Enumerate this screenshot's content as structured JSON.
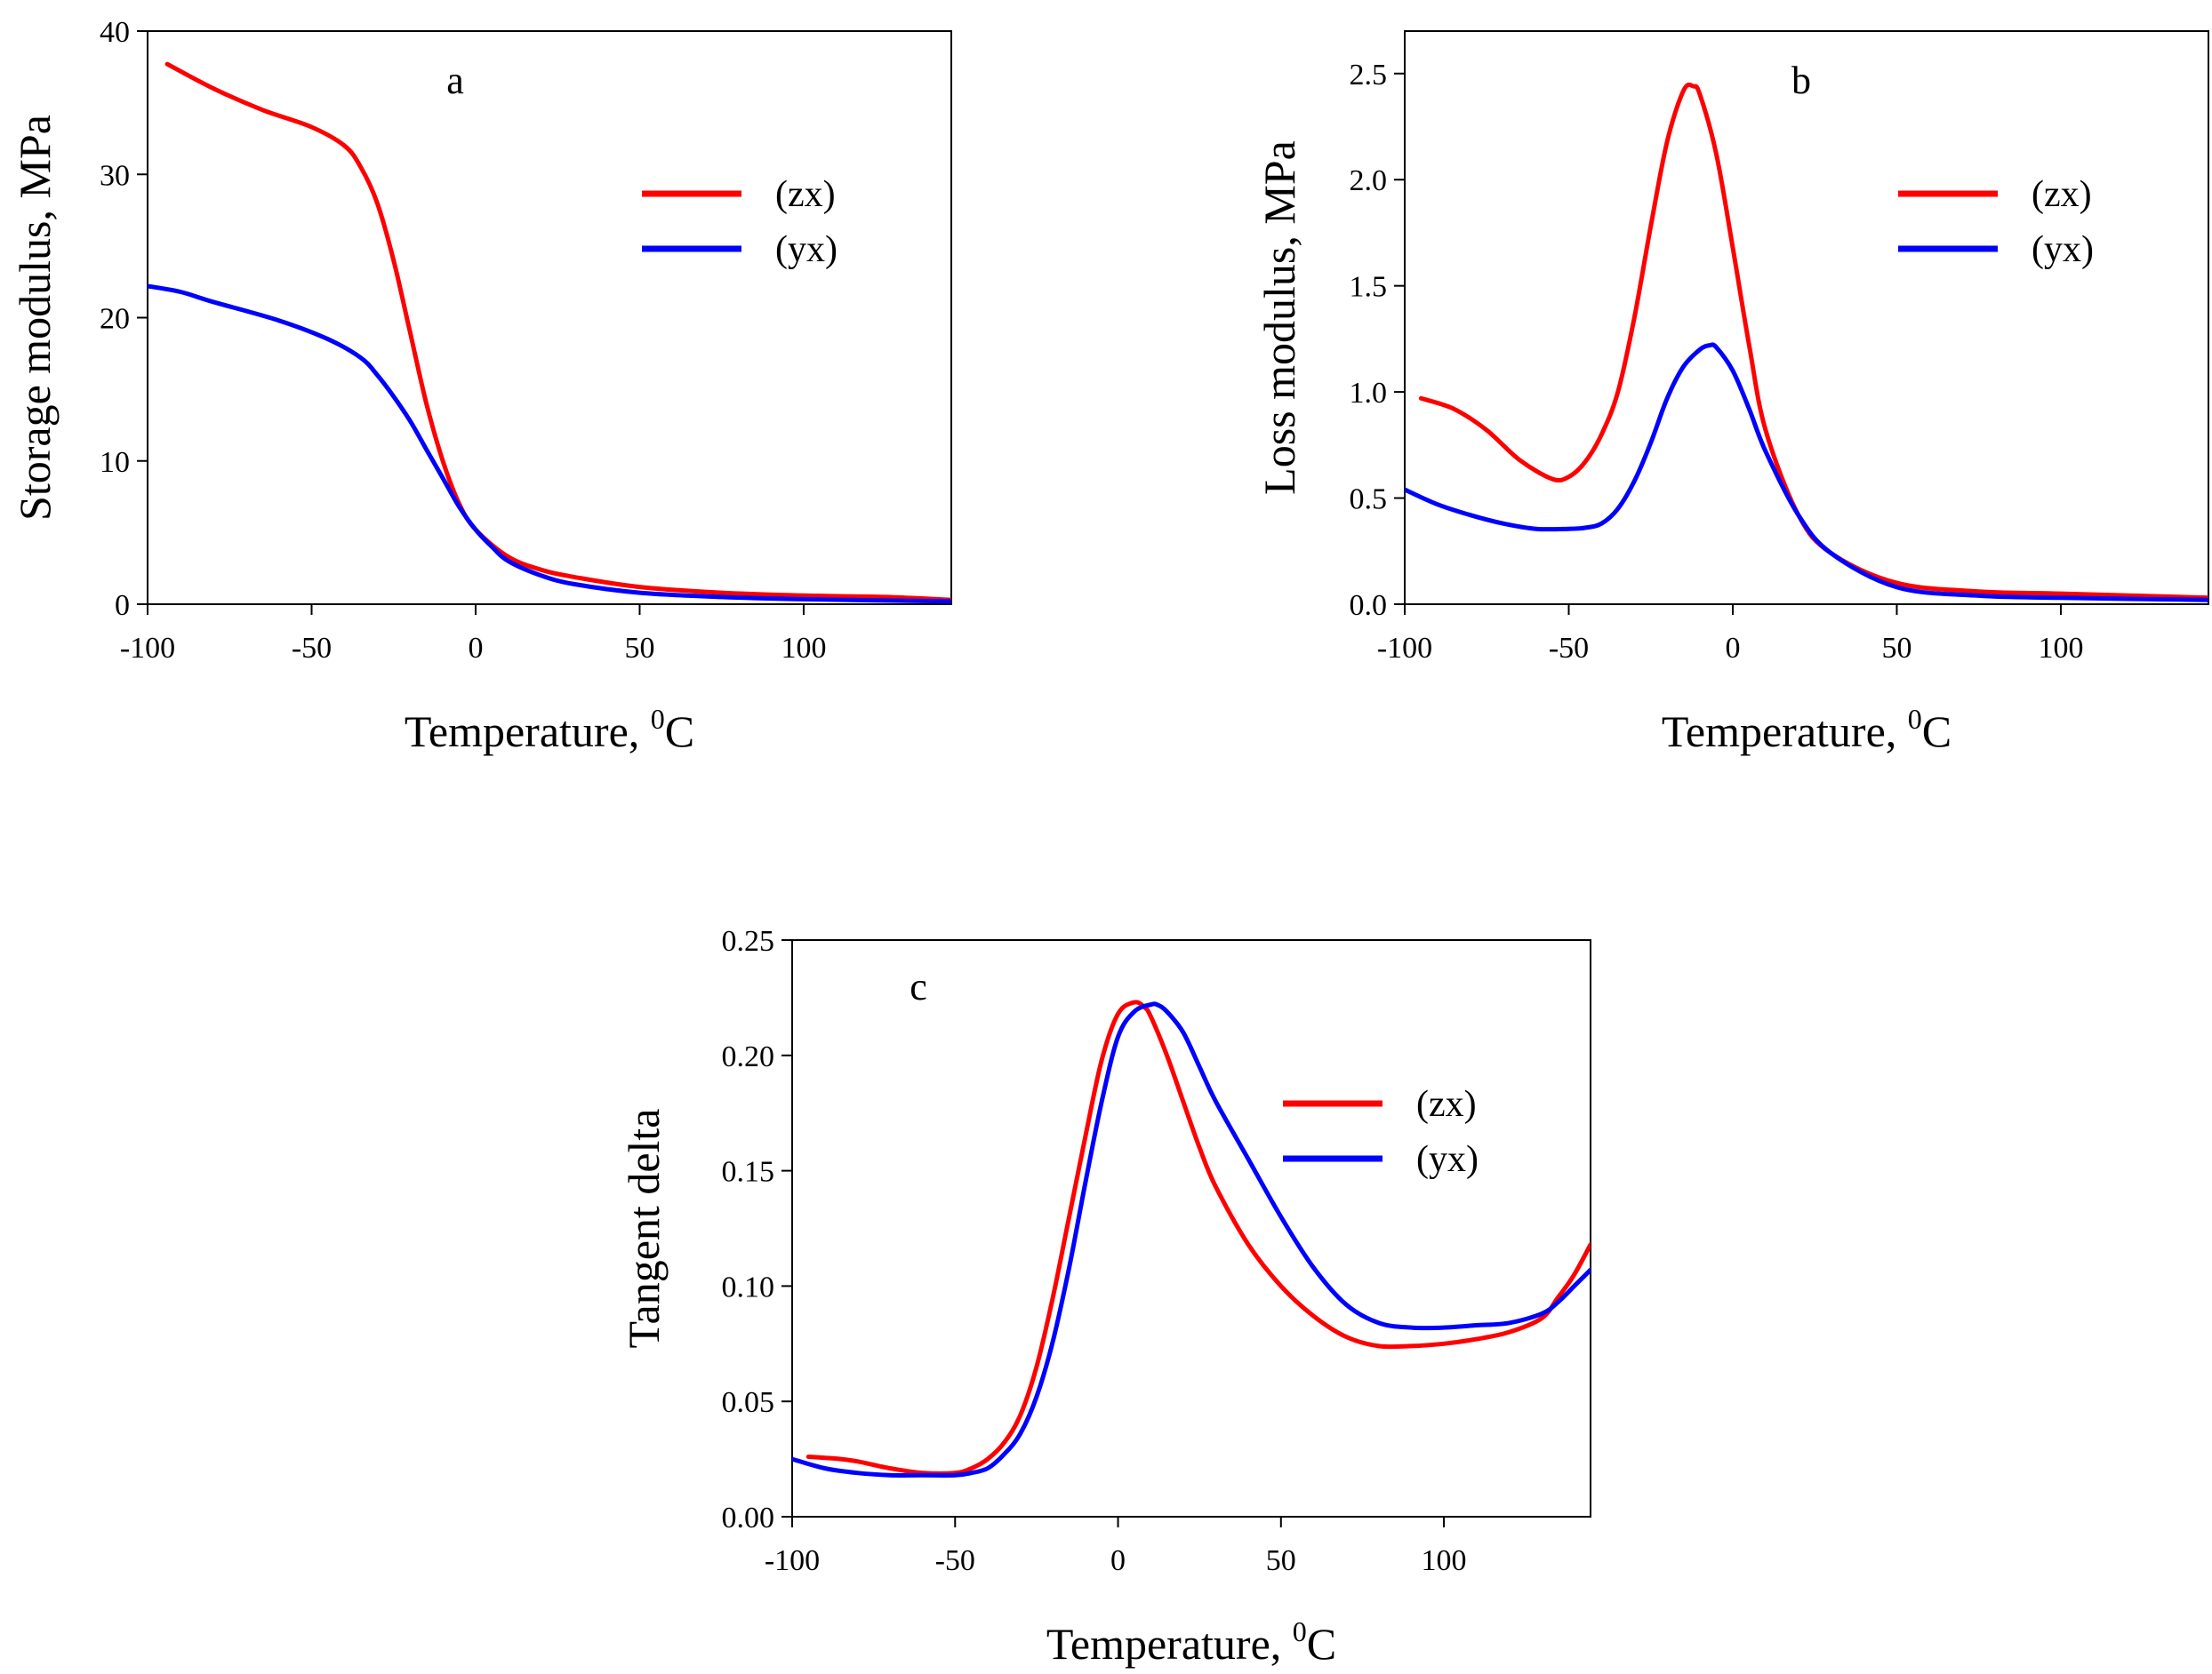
{
  "chart_data": [
    {
      "id": "a",
      "type": "line",
      "panel_label": "a",
      "xlabel": "Temperature, ",
      "xlabel_sup": "0",
      "xlabel_unit": "C",
      "ylabel": "Storage modulus, MPa",
      "xlim": [
        -100,
        145
      ],
      "ylim": [
        0,
        40
      ],
      "xticks": [
        -100,
        -50,
        0,
        50,
        100
      ],
      "yticks": [
        0,
        10,
        20,
        30,
        40
      ],
      "ytick_labels": [
        "0",
        "10",
        "20",
        "30",
        "40"
      ],
      "legend": [
        "(zx)",
        "(yx)"
      ],
      "series": [
        {
          "name": "(zx)",
          "color": "#ff0000",
          "x": [
            -94,
            -80,
            -65,
            -50,
            -40,
            -35,
            -30,
            -25,
            -20,
            -15,
            -10,
            -5,
            0,
            10,
            20,
            30,
            50,
            75,
            100,
            125,
            145
          ],
          "y": [
            37.7,
            36.0,
            34.5,
            33.3,
            32.0,
            30.5,
            28.0,
            24.0,
            19.0,
            14.0,
            10.0,
            7.0,
            5.2,
            3.3,
            2.4,
            1.9,
            1.2,
            0.8,
            0.6,
            0.5,
            0.3
          ]
        },
        {
          "name": "(yx)",
          "color": "#0000ff",
          "x": [
            -100,
            -90,
            -80,
            -60,
            -45,
            -35,
            -30,
            -25,
            -20,
            -15,
            -10,
            -5,
            0,
            5,
            10,
            20,
            30,
            50,
            75,
            100,
            145
          ],
          "y": [
            22.2,
            21.8,
            21.1,
            19.8,
            18.5,
            17.2,
            16.0,
            14.5,
            12.8,
            10.8,
            8.8,
            6.8,
            5.2,
            4.0,
            3.0,
            2.0,
            1.4,
            0.8,
            0.5,
            0.35,
            0.2
          ]
        }
      ]
    },
    {
      "id": "b",
      "type": "line",
      "panel_label": "b",
      "xlabel": "Temperature, ",
      "xlabel_sup": "0",
      "xlabel_unit": "C",
      "ylabel": "Loss modulus, MPa",
      "xlim": [
        -100,
        145
      ],
      "ylim": [
        0,
        2.7
      ],
      "xticks": [
        -100,
        -50,
        0,
        50,
        100
      ],
      "yticks": [
        0,
        0.5,
        1.0,
        1.5,
        2.0,
        2.5
      ],
      "ytick_labels": [
        "0.0",
        "0.5",
        "1.0",
        "1.5",
        "2.0",
        "2.5"
      ],
      "legend": [
        "(zx)",
        "(yx)"
      ],
      "series": [
        {
          "name": "(zx)",
          "color": "#ff0000",
          "x": [
            -95,
            -85,
            -75,
            -65,
            -55,
            -50,
            -45,
            -40,
            -35,
            -30,
            -25,
            -20,
            -15,
            -12,
            -10,
            -5,
            0,
            5,
            10,
            20,
            30,
            50,
            75,
            100,
            145
          ],
          "y": [
            0.97,
            0.92,
            0.82,
            0.68,
            0.59,
            0.6,
            0.67,
            0.8,
            1.0,
            1.35,
            1.78,
            2.18,
            2.42,
            2.44,
            2.4,
            2.12,
            1.68,
            1.22,
            0.82,
            0.42,
            0.24,
            0.1,
            0.06,
            0.05,
            0.03
          ]
        },
        {
          "name": "(yx)",
          "color": "#0000ff",
          "x": [
            -100,
            -90,
            -80,
            -70,
            -60,
            -50,
            -45,
            -40,
            -35,
            -30,
            -25,
            -20,
            -15,
            -10,
            -7,
            -5,
            0,
            5,
            10,
            20,
            30,
            50,
            75,
            100,
            145
          ],
          "y": [
            0.54,
            0.47,
            0.42,
            0.38,
            0.355,
            0.355,
            0.36,
            0.38,
            0.45,
            0.58,
            0.76,
            0.97,
            1.12,
            1.2,
            1.22,
            1.21,
            1.1,
            0.92,
            0.72,
            0.42,
            0.24,
            0.08,
            0.04,
            0.03,
            0.02
          ]
        }
      ]
    },
    {
      "id": "c",
      "type": "line",
      "panel_label": "c",
      "xlabel": "Temperature, ",
      "xlabel_sup": "0",
      "xlabel_unit": "C",
      "ylabel": "Tangent delta",
      "xlim": [
        -100,
        145
      ],
      "ylim": [
        0,
        0.25
      ],
      "xticks": [
        -100,
        -50,
        0,
        50,
        100
      ],
      "yticks": [
        0,
        0.05,
        0.1,
        0.15,
        0.2,
        0.25
      ],
      "ytick_labels": [
        "0.00",
        "0.05",
        "0.10",
        "0.15",
        "0.20",
        "0.25"
      ],
      "legend": [
        "(zx)",
        "(yx)"
      ],
      "series": [
        {
          "name": "(zx)",
          "color": "#ff0000",
          "x": [
            -95,
            -85,
            -80,
            -70,
            -60,
            -50,
            -45,
            -40,
            -35,
            -30,
            -25,
            -20,
            -15,
            -10,
            -5,
            0,
            5,
            8,
            10,
            15,
            20,
            25,
            30,
            40,
            50,
            60,
            70,
            80,
            90,
            100,
            110,
            120,
            130,
            135,
            140,
            145
          ],
          "y": [
            0.026,
            0.025,
            0.024,
            0.021,
            0.019,
            0.019,
            0.021,
            0.025,
            0.032,
            0.044,
            0.065,
            0.095,
            0.13,
            0.165,
            0.198,
            0.218,
            0.223,
            0.221,
            0.217,
            0.2,
            0.18,
            0.16,
            0.143,
            0.118,
            0.1,
            0.087,
            0.078,
            0.074,
            0.074,
            0.075,
            0.077,
            0.08,
            0.086,
            0.095,
            0.105,
            0.118
          ]
        },
        {
          "name": "(yx)",
          "color": "#0000ff",
          "x": [
            -100,
            -90,
            -80,
            -70,
            -60,
            -50,
            -45,
            -40,
            -35,
            -30,
            -25,
            -20,
            -15,
            -10,
            -5,
            0,
            5,
            10,
            12,
            15,
            20,
            25,
            30,
            40,
            50,
            60,
            70,
            80,
            90,
            100,
            110,
            120,
            130,
            135,
            140,
            145
          ],
          "y": [
            0.025,
            0.021,
            0.019,
            0.018,
            0.018,
            0.018,
            0.019,
            0.021,
            0.027,
            0.036,
            0.052,
            0.076,
            0.108,
            0.145,
            0.18,
            0.208,
            0.219,
            0.222,
            0.222,
            0.219,
            0.21,
            0.195,
            0.18,
            0.155,
            0.13,
            0.108,
            0.092,
            0.084,
            0.082,
            0.082,
            0.083,
            0.084,
            0.088,
            0.093,
            0.1,
            0.107
          ]
        }
      ]
    }
  ]
}
